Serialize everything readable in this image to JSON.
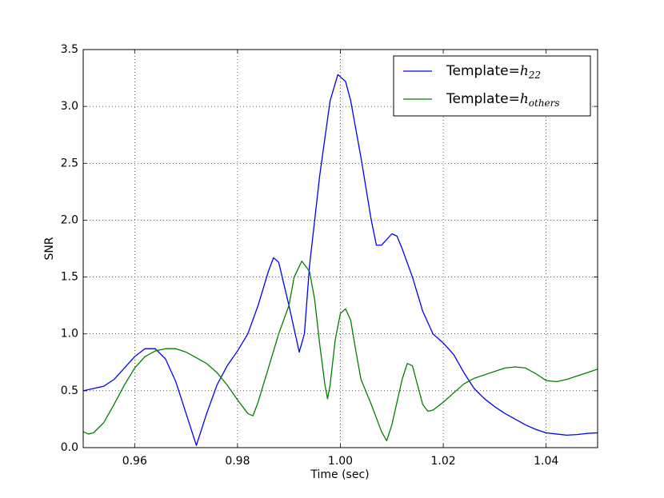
{
  "chart_data": {
    "type": "line",
    "xlabel": "Time (sec)",
    "ylabel": "SNR",
    "xlim": [
      0.95,
      1.05
    ],
    "ylim": [
      0,
      3.5
    ],
    "xticks": [
      0.96,
      0.98,
      {
        "value": 1,
        "label": "1.00"
      },
      1.02,
      1.04
    ],
    "yticks": [
      {
        "value": 0,
        "label": "0.0"
      },
      {
        "value": 0.5,
        "label": "0.5"
      },
      {
        "value": 1,
        "label": "1.0"
      },
      {
        "value": 1.5,
        "label": "1.5"
      },
      {
        "value": 2,
        "label": "2.0"
      },
      {
        "value": 2.5,
        "label": "2.5"
      },
      {
        "value": 3,
        "label": "3.0"
      },
      {
        "value": 3.5,
        "label": "3.5"
      }
    ],
    "grid": true,
    "legend": "upper right",
    "series": [
      {
        "name": "Template=$h_{22}$",
        "color": "#0000ff",
        "x": [
          0.95,
          0.952,
          0.954,
          0.956,
          0.958,
          0.96,
          0.962,
          0.964,
          0.966,
          0.968,
          0.97,
          0.972,
          0.974,
          0.976,
          0.978,
          0.98,
          0.982,
          0.984,
          0.986,
          0.987,
          0.988,
          0.99,
          0.992,
          0.993,
          0.994,
          0.996,
          0.998,
          0.9995,
          1.001,
          1.002,
          1.004,
          1.006,
          1.007,
          1.008,
          1.01,
          1.011,
          1.012,
          1.014,
          1.016,
          1.018,
          1.02,
          1.022,
          1.024,
          1.026,
          1.028,
          1.03,
          1.032,
          1.034,
          1.036,
          1.038,
          1.04,
          1.042,
          1.044,
          1.046,
          1.048,
          1.05
        ],
        "values": [
          0.5,
          0.52,
          0.54,
          0.6,
          0.7,
          0.8,
          0.87,
          0.87,
          0.78,
          0.58,
          0.3,
          0.02,
          0.3,
          0.55,
          0.72,
          0.85,
          1.0,
          1.25,
          1.55,
          1.67,
          1.63,
          1.25,
          0.84,
          1.0,
          1.6,
          2.4,
          3.05,
          3.28,
          3.22,
          3.05,
          2.55,
          2.0,
          1.78,
          1.78,
          1.88,
          1.86,
          1.75,
          1.5,
          1.2,
          1.0,
          0.92,
          0.82,
          0.66,
          0.52,
          0.43,
          0.36,
          0.3,
          0.25,
          0.2,
          0.16,
          0.13,
          0.12,
          0.11,
          0.115,
          0.125,
          0.13
        ]
      },
      {
        "name": "Template=$h_{others}$",
        "color": "#008000",
        "x": [
          0.95,
          0.951,
          0.952,
          0.954,
          0.956,
          0.958,
          0.96,
          0.962,
          0.964,
          0.966,
          0.968,
          0.97,
          0.972,
          0.974,
          0.976,
          0.978,
          0.98,
          0.982,
          0.983,
          0.984,
          0.986,
          0.988,
          0.99,
          0.991,
          0.9925,
          0.994,
          0.995,
          0.996,
          0.997,
          0.9975,
          0.998,
          0.999,
          1.0,
          1.001,
          1.002,
          1.003,
          1.004,
          1.006,
          1.008,
          1.009,
          1.01,
          1.012,
          1.013,
          1.014,
          1.015,
          1.016,
          1.017,
          1.018,
          1.02,
          1.022,
          1.024,
          1.026,
          1.028,
          1.03,
          1.032,
          1.034,
          1.036,
          1.038,
          1.04,
          1.042,
          1.044,
          1.046,
          1.048,
          1.05
        ],
        "values": [
          0.14,
          0.12,
          0.13,
          0.22,
          0.38,
          0.55,
          0.7,
          0.8,
          0.85,
          0.87,
          0.87,
          0.84,
          0.79,
          0.74,
          0.66,
          0.55,
          0.42,
          0.3,
          0.28,
          0.4,
          0.7,
          1.0,
          1.25,
          1.5,
          1.64,
          1.55,
          1.3,
          0.9,
          0.55,
          0.43,
          0.55,
          0.95,
          1.18,
          1.22,
          1.12,
          0.85,
          0.6,
          0.38,
          0.14,
          0.06,
          0.2,
          0.6,
          0.74,
          0.72,
          0.55,
          0.38,
          0.32,
          0.33,
          0.4,
          0.48,
          0.56,
          0.61,
          0.64,
          0.67,
          0.7,
          0.71,
          0.7,
          0.65,
          0.59,
          0.58,
          0.6,
          0.63,
          0.66,
          0.69
        ]
      }
    ]
  }
}
